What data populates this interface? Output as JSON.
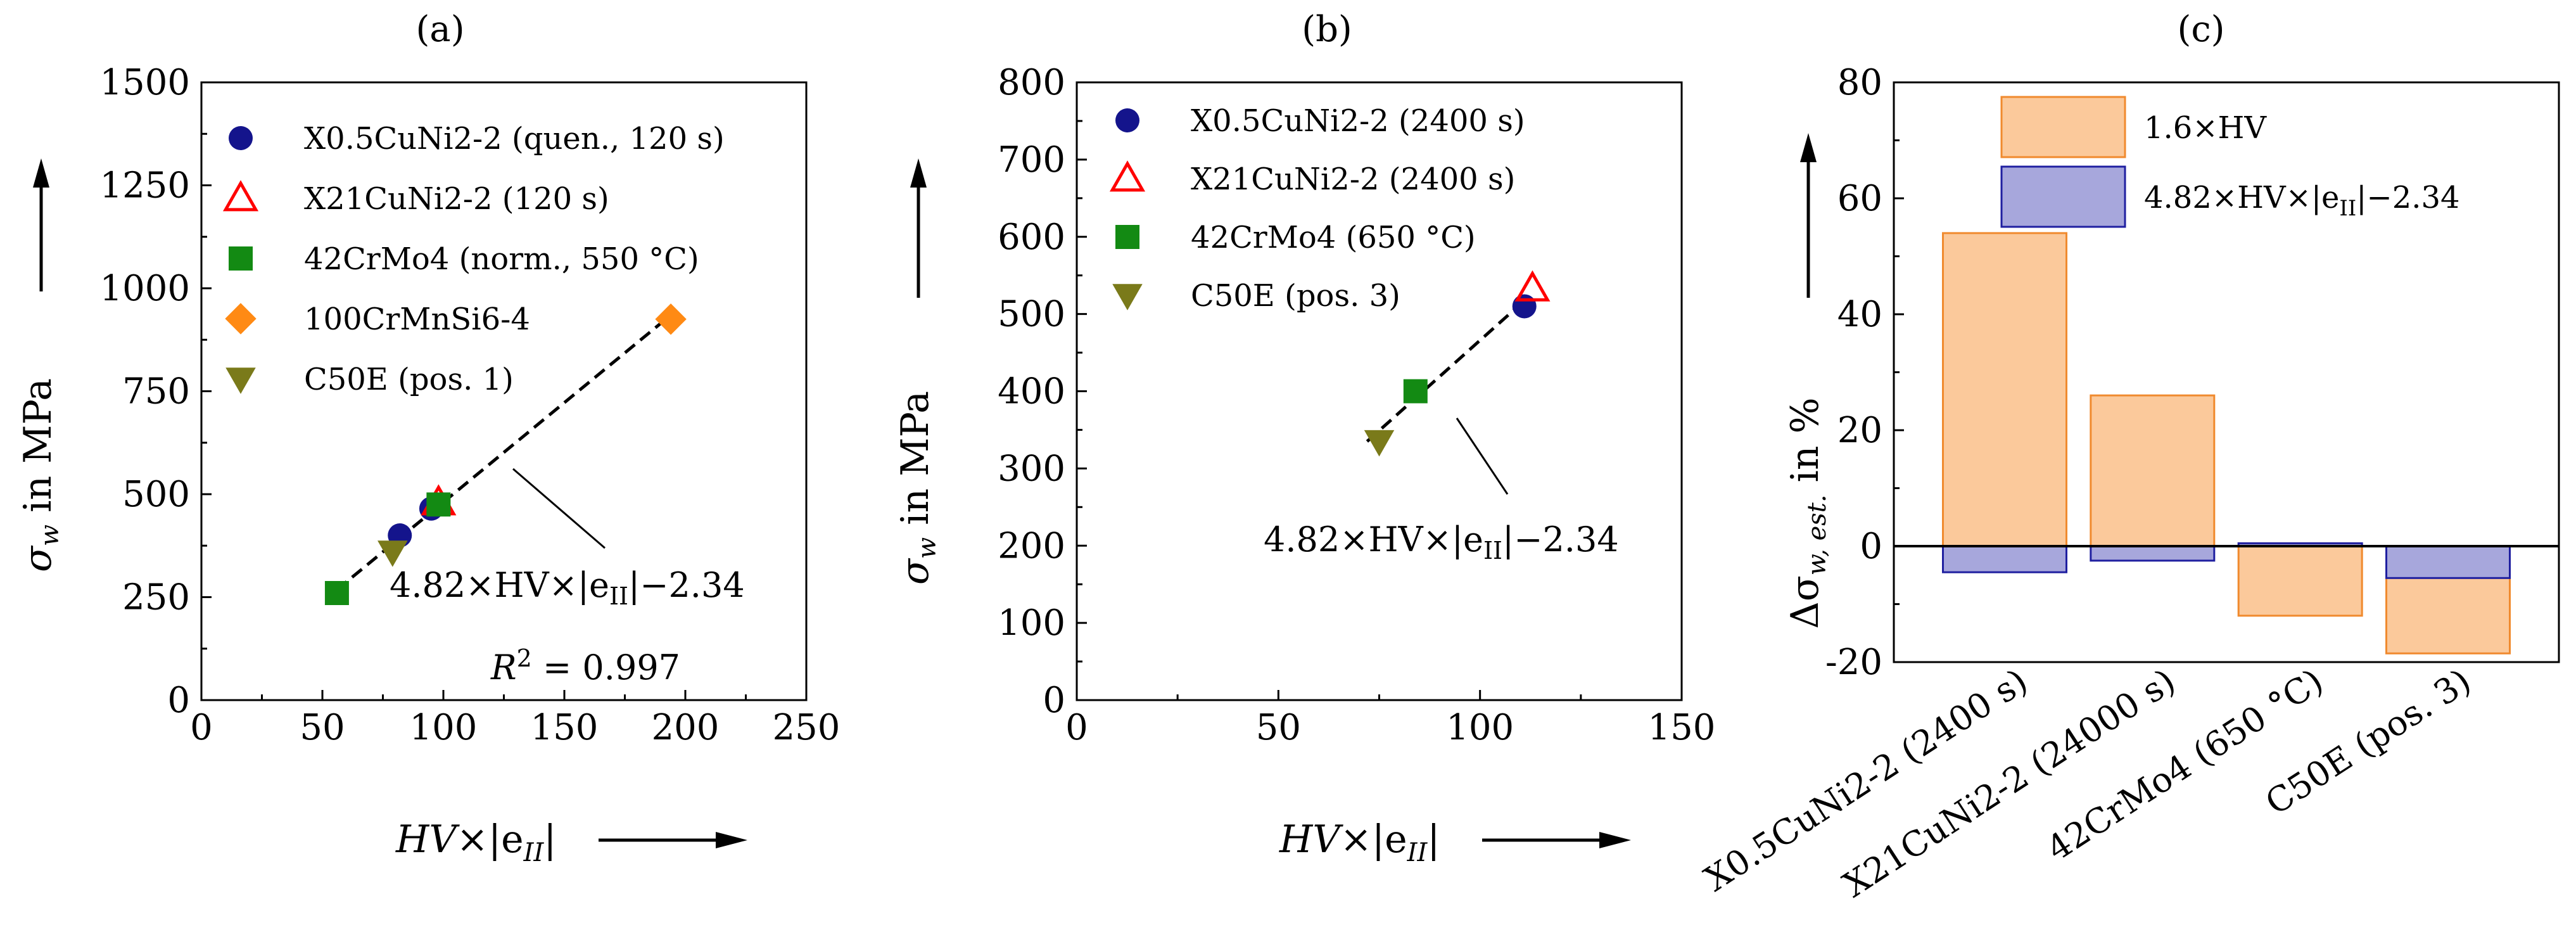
{
  "panel_labels": [
    "(a)",
    "(b)",
    "(c)"
  ],
  "annotations": {
    "a_fit": "4.82×HV×|e",
    "a_fit_sub": "II",
    "a_fit_tail": "|−2.34",
    "a_r2_lhs": "R",
    "a_r2_sup": "2",
    "a_r2_rhs": " = 0.997",
    "b_fit": "4.82×HV×|e",
    "b_fit_sub": "II",
    "b_fit_tail": "|−2.34"
  },
  "axis_text": {
    "sigma": "σ",
    "sigma_sub": "w",
    "in_mpa": " in MPa",
    "hv_main": "HV",
    "hv_times": "×|e",
    "hv_sub": "II",
    "hv_tail": "|",
    "delta": "Δσ",
    "delta_sub": "w, est.",
    "in_pct": " in %"
  },
  "colors": {
    "navy": "#14148c",
    "red": "#ff0000",
    "green": "#138a13",
    "orange": "#ff8a14",
    "olive": "#7a7a1a",
    "bar_orange_fill": "#fbc99b",
    "bar_orange_stroke": "#f08a2e",
    "bar_blue_fill": "#a7a7dc",
    "bar_blue_stroke": "#1f1fa0"
  },
  "chart_data": [
    {
      "type": "scatter",
      "title": "(a)",
      "xlim": [
        0,
        250
      ],
      "ylim": [
        0,
        1500
      ],
      "xticks": [
        0,
        50,
        100,
        150,
        200,
        250
      ],
      "yticks": [
        0,
        250,
        500,
        750,
        1000,
        1250,
        1500
      ],
      "legend_position": "top-left",
      "series": [
        {
          "name": "X0.5CuNi2-2 (quen., 120 s)",
          "marker": "circle",
          "color": "#14148c",
          "points": [
            [
              82,
              400
            ],
            [
              95,
              465
            ]
          ]
        },
        {
          "name": "X21CuNi2-2 (120 s)",
          "marker": "triangle-up",
          "color": "#ff0000",
          "points": [
            [
              98,
              480
            ]
          ]
        },
        {
          "name": "42CrMo4 (norm., 550 °C)",
          "marker": "square",
          "color": "#138a13",
          "points": [
            [
              56,
              260
            ],
            [
              98,
              475
            ]
          ]
        },
        {
          "name": "100CrMnSi6-4",
          "marker": "diamond",
          "color": "#ff8a14",
          "points": [
            [
              194,
              925
            ]
          ]
        },
        {
          "name": "C50E (pos. 1)",
          "marker": "triangle-down",
          "color": "#7a7a1a",
          "points": [
            [
              79,
              360
            ]
          ]
        }
      ],
      "fit_line": {
        "x": [
          56,
          194
        ],
        "y": [
          268,
          935
        ]
      }
    },
    {
      "type": "scatter",
      "title": "(b)",
      "xlim": [
        0,
        150
      ],
      "ylim": [
        0,
        800
      ],
      "xticks": [
        0,
        50,
        100,
        150
      ],
      "yticks": [
        0,
        100,
        200,
        300,
        400,
        500,
        600,
        700,
        800
      ],
      "legend_position": "top-left",
      "series": [
        {
          "name": "X0.5CuNi2-2 (2400 s)",
          "marker": "circle",
          "color": "#14148c",
          "points": [
            [
              111,
              510
            ]
          ]
        },
        {
          "name": "X21CuNi2-2 (2400 s)",
          "marker": "triangle-up",
          "color": "#ff0000",
          "points": [
            [
              113,
              533
            ]
          ]
        },
        {
          "name": "42CrMo4 (650 °C)",
          "marker": "square",
          "color": "#138a13",
          "points": [
            [
              84,
              400
            ]
          ]
        },
        {
          "name": "C50E (pos. 3)",
          "marker": "triangle-down",
          "color": "#7a7a1a",
          "points": [
            [
              75,
              335
            ]
          ]
        }
      ],
      "fit_line": {
        "x": [
          72,
          112
        ],
        "y": [
          335,
          522
        ]
      }
    },
    {
      "type": "bar",
      "title": "(c)",
      "ylim": [
        -20,
        80
      ],
      "yticks": [
        -20,
        0,
        20,
        40,
        60,
        80
      ],
      "categories": [
        "X0.5CuNi2-2 (2400 s)",
        "X21CuNi2-2 (24000 s)",
        "42CrMo4 (650 °C)",
        "C50E (pos. 3)"
      ],
      "legend_position": "top",
      "series": [
        {
          "name": "1.6×HV",
          "color": "#fbc99b",
          "values": [
            54,
            26,
            -12,
            -18.5
          ]
        },
        {
          "name": "4.82×HV×|e",
          "name_sub": "II",
          "name_tail": "|−2.34",
          "color": "#a7a7dc",
          "values": [
            -4.5,
            -2.5,
            0.5,
            -5.5
          ]
        }
      ]
    }
  ]
}
